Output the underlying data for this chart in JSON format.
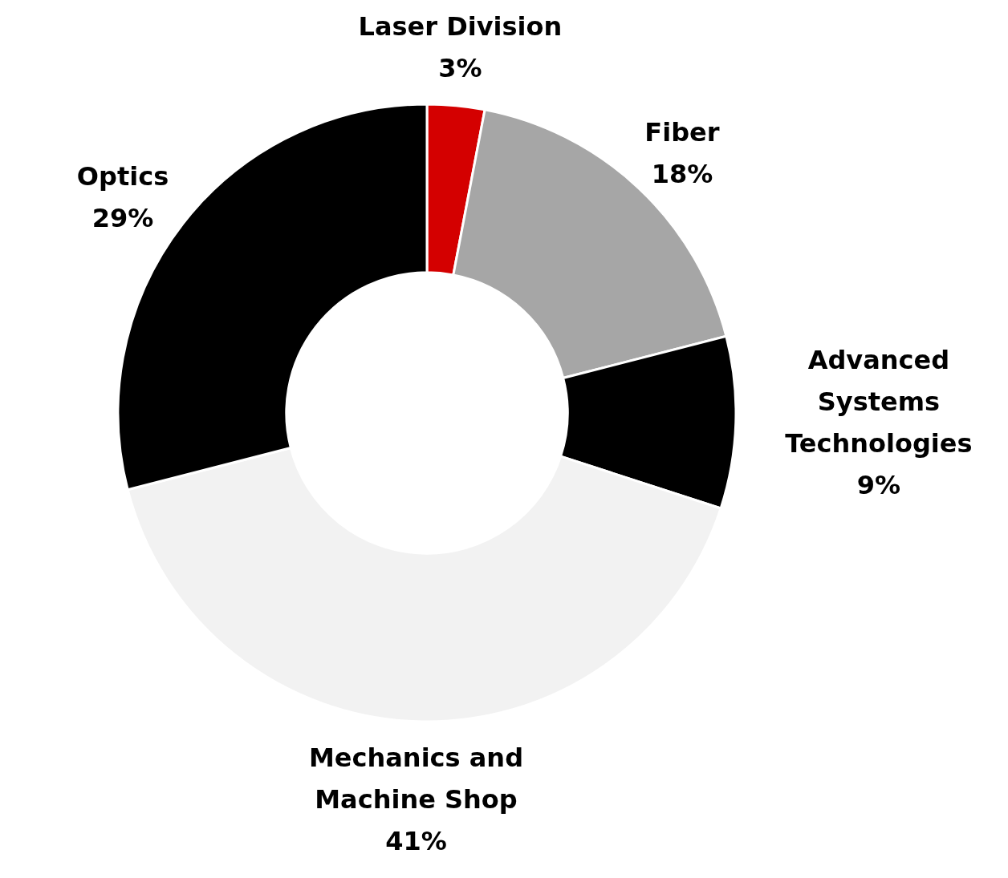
{
  "chart_data": {
    "type": "donut",
    "categories": [
      "Laser Division",
      "Fiber",
      "Advanced Systems Technologies",
      "Mechanics and Machine Shop",
      "Optics"
    ],
    "values": [
      3,
      18,
      9,
      41,
      29
    ],
    "colors": [
      "#d40000",
      "#a6a6a6",
      "#000000",
      "#f2f2f2",
      "#000000"
    ],
    "value_labels": [
      "3%",
      "18%",
      "9%",
      "41%",
      "29%"
    ]
  }
}
